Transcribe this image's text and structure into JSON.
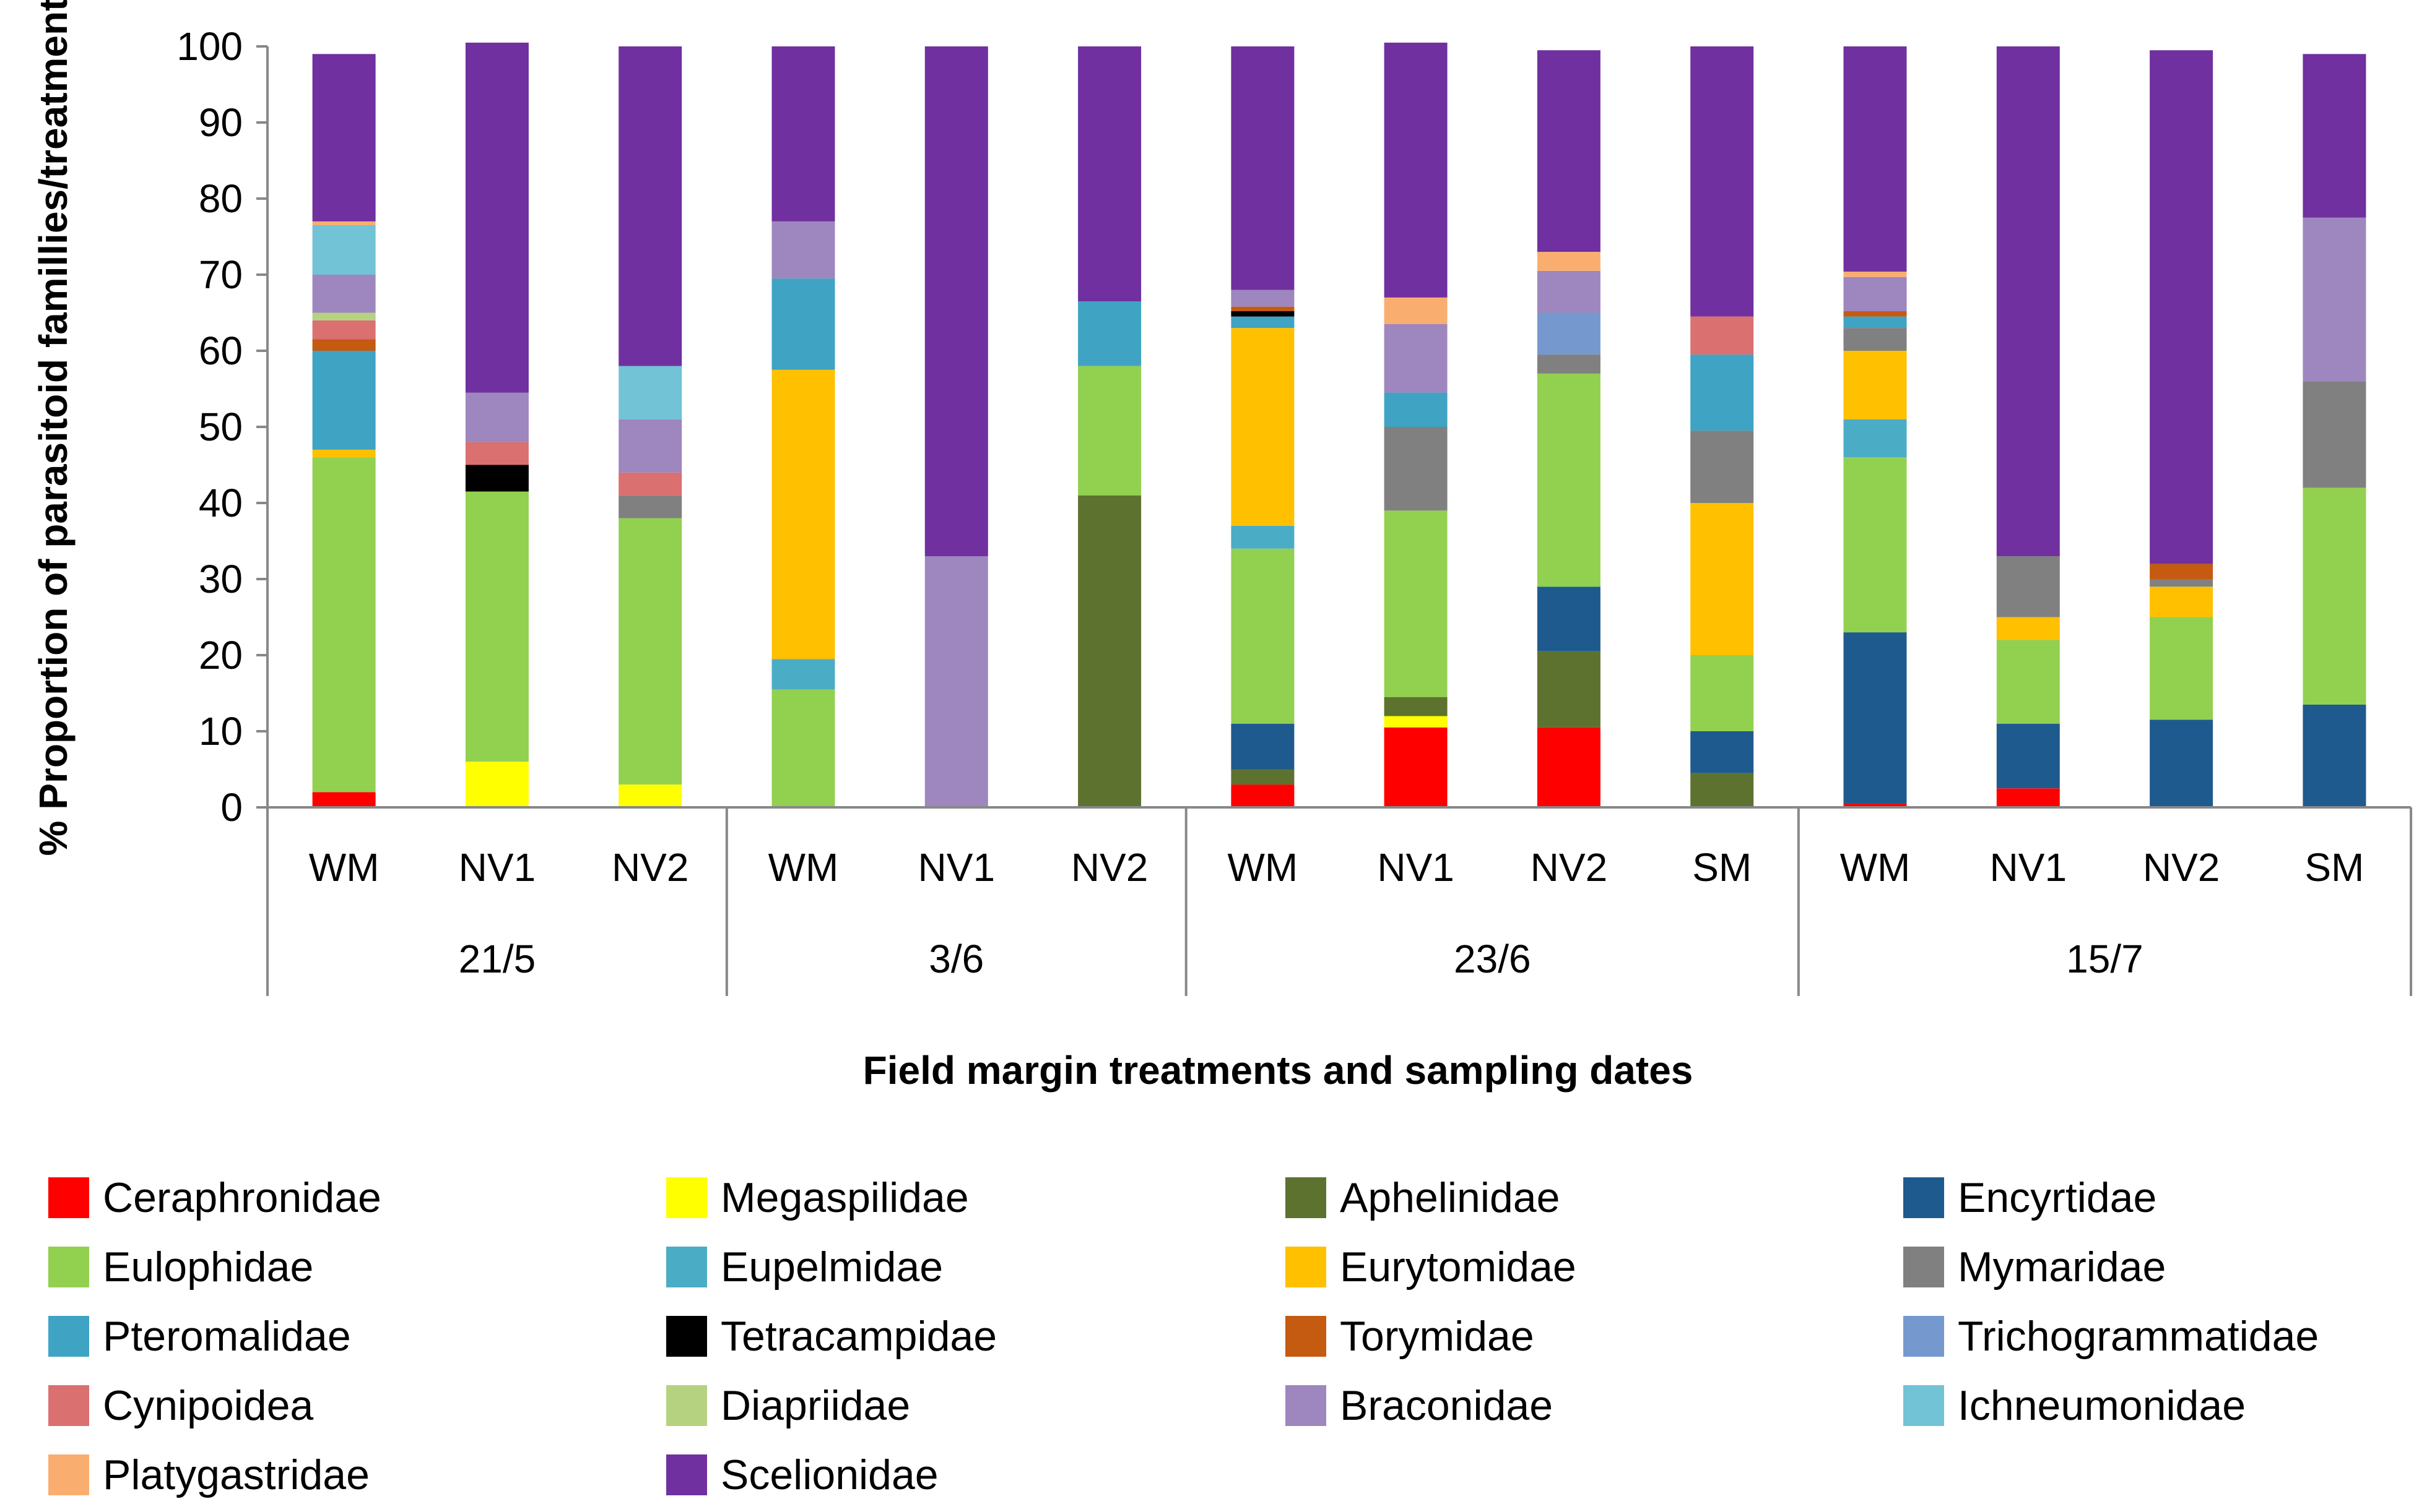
{
  "chart_data": {
    "type": "bar",
    "stacked": true,
    "title": "",
    "xlabel": "Field margin treatments and sampling dates",
    "ylabel": "% Proportion of parasitoid famillies/treatment",
    "ylim": [
      0,
      100
    ],
    "yticks": [
      "0",
      "10",
      "20",
      "30",
      "40",
      "50",
      "60",
      "70",
      "80",
      "90",
      "100"
    ],
    "grid": false,
    "legend_position": "bottom",
    "groups": [
      {
        "label": "21/5",
        "count": 3
      },
      {
        "label": "3/6",
        "count": 3
      },
      {
        "label": "23/6",
        "count": 4
      },
      {
        "label": "15/7",
        "count": 4
      }
    ],
    "categories": [
      "WM",
      "NV1",
      "NV2",
      "WM",
      "NV1",
      "NV2",
      "WM",
      "NV1",
      "NV2",
      "SM",
      "WM",
      "NV1",
      "NV2",
      "SM"
    ],
    "series": [
      {
        "name": "Ceraphronidae",
        "color": "#FF0000",
        "values": [
          2,
          0,
          0,
          0,
          0,
          0,
          3,
          10.5,
          10.5,
          0,
          0.5,
          2.5,
          0,
          0
        ]
      },
      {
        "name": "Megaspilidae",
        "color": "#FFFF00",
        "values": [
          0,
          6,
          3,
          0,
          0,
          0,
          0,
          1.5,
          0,
          0,
          0,
          0,
          0,
          0
        ]
      },
      {
        "name": "Aphelinidae",
        "color": "#5E722F",
        "values": [
          0,
          0,
          0,
          0,
          0,
          41,
          2,
          2.5,
          10,
          4.5,
          0,
          0,
          0,
          0
        ]
      },
      {
        "name": "Encyrtidae",
        "color": "#1F5A8E",
        "values": [
          0,
          0,
          0,
          0,
          0,
          0,
          6,
          0,
          8.5,
          5.5,
          22.5,
          8.5,
          11.5,
          13.5
        ]
      },
      {
        "name": "Eulophidae",
        "color": "#92D050",
        "values": [
          44,
          35.5,
          35,
          15.5,
          0,
          17,
          23,
          24.5,
          28,
          10,
          23,
          11,
          13.5,
          28.5
        ]
      },
      {
        "name": "Eupelmidae",
        "color": "#4BACC6",
        "values": [
          0,
          0,
          0,
          4,
          0,
          0,
          3,
          0,
          0,
          0,
          5,
          0,
          0,
          0
        ]
      },
      {
        "name": "Eurytomidae",
        "color": "#FFC000",
        "values": [
          1,
          0,
          0,
          38,
          0,
          0,
          26,
          0,
          0,
          20,
          9,
          3,
          4,
          0
        ]
      },
      {
        "name": "Mymaridae",
        "color": "#808080",
        "values": [
          0,
          0,
          3,
          0,
          0,
          0,
          0,
          11,
          2.5,
          9.5,
          3,
          8,
          1,
          14
        ]
      },
      {
        "name": "Pteromalidae",
        "color": "#3FA3C4",
        "values": [
          13,
          0,
          0,
          12,
          0,
          8.5,
          1.5,
          4.5,
          0,
          10,
          1.5,
          0,
          0,
          0
        ]
      },
      {
        "name": "Tetracampidae",
        "color": "#000000",
        "values": [
          0,
          3.5,
          0,
          0,
          0,
          0,
          0.7,
          0,
          0,
          0,
          0,
          0,
          0,
          0
        ]
      },
      {
        "name": "Torymidae",
        "color": "#C55A11",
        "values": [
          1.5,
          0,
          0,
          0,
          0,
          0,
          0.6,
          0,
          0,
          0,
          0.7,
          0,
          2,
          0
        ]
      },
      {
        "name": "Trichogrammatidae",
        "color": "#7599CF",
        "values": [
          0,
          0,
          0,
          0,
          0,
          0,
          0,
          0,
          5.5,
          0,
          0,
          0,
          0,
          0
        ]
      },
      {
        "name": "Cynipoidea",
        "color": "#DA7070",
        "values": [
          2.5,
          3,
          3,
          0,
          0,
          0,
          0,
          0,
          0,
          5,
          0,
          0,
          0,
          0
        ]
      },
      {
        "name": "Diapriidae",
        "color": "#B5D281",
        "values": [
          1,
          0,
          0,
          0,
          0,
          0,
          0,
          0,
          0,
          0,
          0,
          0,
          0,
          0
        ]
      },
      {
        "name": "Braconidae",
        "color": "#9E86BE",
        "values": [
          5,
          6.5,
          7,
          7.5,
          33,
          0,
          2.2,
          9,
          5.5,
          0,
          4.5,
          0,
          0,
          21.5
        ]
      },
      {
        "name": "Ichneumonidae",
        "color": "#72C3D5",
        "values": [
          6.5,
          0,
          7,
          0,
          0,
          0,
          0,
          0,
          0,
          0,
          0,
          0,
          0,
          0
        ]
      },
      {
        "name": "Platygastridae",
        "color": "#F9AE70",
        "values": [
          0.5,
          0,
          0,
          0,
          0,
          0,
          0,
          3.5,
          2.5,
          0,
          0.7,
          0,
          0,
          0
        ]
      },
      {
        "name": "Scelionidae",
        "color": "#7030A0",
        "values": [
          22,
          46,
          42,
          23,
          67,
          33.5,
          32,
          33.5,
          26.5,
          35.5,
          29.6,
          67,
          67.5,
          21.5
        ]
      }
    ]
  }
}
